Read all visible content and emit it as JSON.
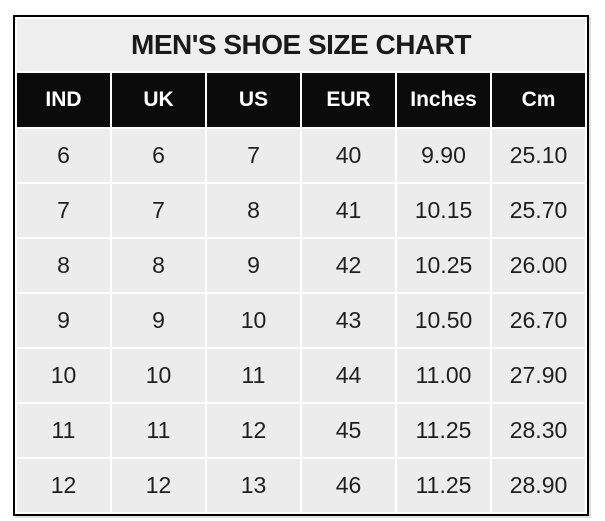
{
  "title": "MEN'S SHOE SIZE CHART",
  "table": {
    "columns": [
      "IND",
      "UK",
      "US",
      "EUR",
      "Inches",
      "Cm"
    ],
    "rows": [
      [
        "6",
        "6",
        "7",
        "40",
        "9.90",
        "25.10"
      ],
      [
        "7",
        "7",
        "8",
        "41",
        "10.15",
        "25.70"
      ],
      [
        "8",
        "8",
        "9",
        "42",
        "10.25",
        "26.00"
      ],
      [
        "9",
        "9",
        "10",
        "43",
        "10.50",
        "26.70"
      ],
      [
        "10",
        "10",
        "11",
        "44",
        "11.00",
        "27.90"
      ],
      [
        "11",
        "11",
        "12",
        "45",
        "11.25",
        "28.30"
      ],
      [
        "12",
        "12",
        "13",
        "46",
        "11.25",
        "28.90"
      ]
    ]
  },
  "colors": {
    "header_bg": "#0b0b0b",
    "header_text": "#ffffff",
    "title_bg": "#efefef",
    "cell_bg": "#ececec",
    "gap": "#ffffff",
    "border": "#000000"
  },
  "chart_data": {
    "type": "table",
    "title": "MEN'S SHOE SIZE CHART",
    "columns": [
      "IND",
      "UK",
      "US",
      "EUR",
      "Inches",
      "Cm"
    ],
    "rows": [
      [
        6,
        6,
        7,
        40,
        9.9,
        25.1
      ],
      [
        7,
        7,
        8,
        41,
        10.15,
        25.7
      ],
      [
        8,
        8,
        9,
        42,
        10.25,
        26.0
      ],
      [
        9,
        9,
        10,
        43,
        10.5,
        26.7
      ],
      [
        10,
        10,
        11,
        44,
        11.0,
        27.9
      ],
      [
        11,
        11,
        12,
        45,
        11.25,
        28.3
      ],
      [
        12,
        12,
        13,
        46,
        11.25,
        28.9
      ]
    ]
  }
}
